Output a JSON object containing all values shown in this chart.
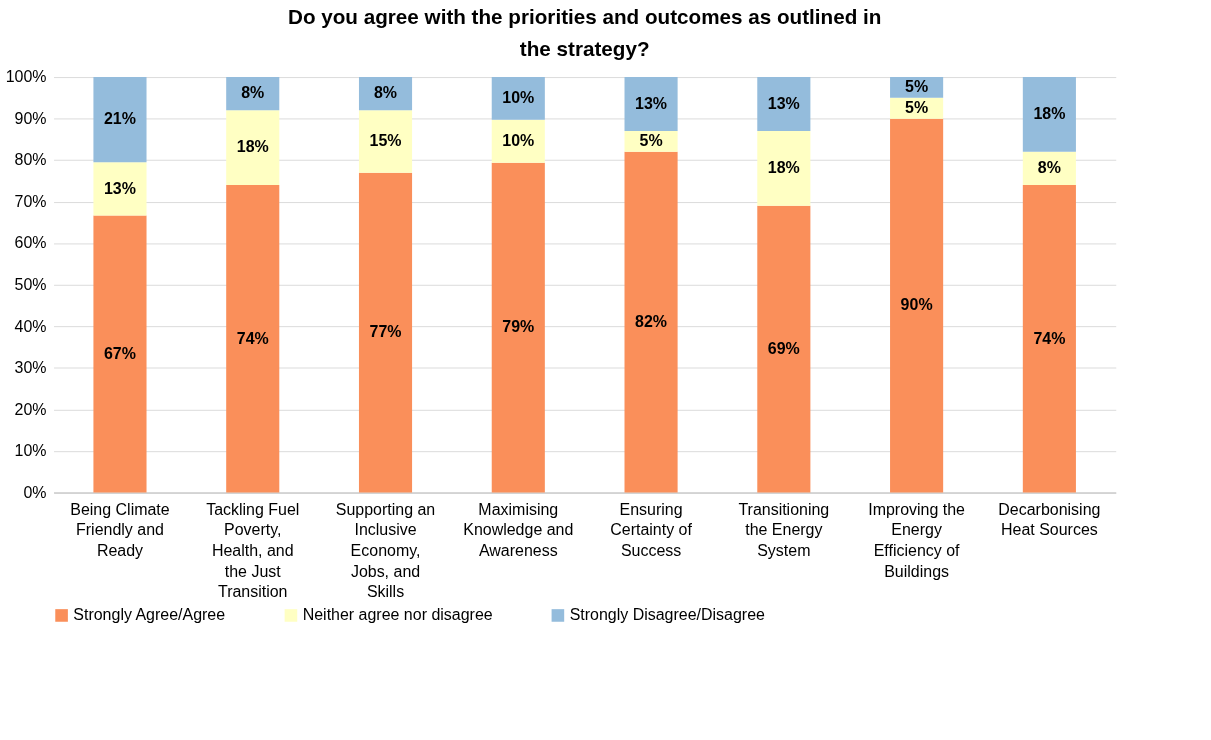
{
  "chart_data": {
    "type": "bar",
    "stacked": true,
    "title": "Do you agree with the priorities and outcomes as outlined in the strategy?",
    "categories": [
      "Being Climate Friendly and Ready",
      "Tackling Fuel Poverty, Health, and the Just Transition",
      "Supporting an Inclusive Economy, Jobs, and Skills",
      "Maximising Knowledge and Awareness",
      "Ensuring Certainty of Success",
      "Transitioning the Energy System",
      "Improving the Energy Efficiency of Buildings",
      "Decarbonising Heat Sources"
    ],
    "series": [
      {
        "name": "Strongly Agree/Agree",
        "color": "#fa8f5a",
        "values": [
          66.7,
          74,
          77,
          79.4,
          82,
          69,
          90,
          74
        ],
        "value_labels": [
          "67%",
          "74%",
          "77%",
          "79%",
          "82%",
          "69%",
          "90%",
          "74%"
        ]
      },
      {
        "name": "Neither agree nor disagree",
        "color": "#ffffc3",
        "values": [
          12.8,
          18,
          15,
          10.3,
          5,
          18,
          5,
          8
        ],
        "value_labels": [
          "13%",
          "18%",
          "15%",
          "10%",
          "5%",
          "18%",
          "5%",
          "8%"
        ]
      },
      {
        "name": "Strongly Disagree/Disagree",
        "color": "#94bcdc",
        "values": [
          20.5,
          8,
          8,
          10.3,
          13,
          13,
          5,
          18
        ],
        "value_labels": [
          "21%",
          "8%",
          "8%",
          "10%",
          "13%",
          "13%",
          "5%",
          "18%"
        ]
      }
    ],
    "ylim": [
      0,
      100
    ],
    "yticks": [
      {
        "value": 0,
        "label": "0%"
      },
      {
        "value": 10,
        "label": "10%"
      },
      {
        "value": 20,
        "label": "20%"
      },
      {
        "value": 30,
        "label": "30%"
      },
      {
        "value": 40,
        "label": "40%"
      },
      {
        "value": 50,
        "label": "50%"
      },
      {
        "value": 60,
        "label": "60%"
      },
      {
        "value": 70,
        "label": "70%"
      },
      {
        "value": 80,
        "label": "80%"
      },
      {
        "value": 90,
        "label": "90%"
      },
      {
        "value": 100,
        "label": "100%"
      }
    ],
    "grid": "y",
    "legend": "bottom"
  }
}
